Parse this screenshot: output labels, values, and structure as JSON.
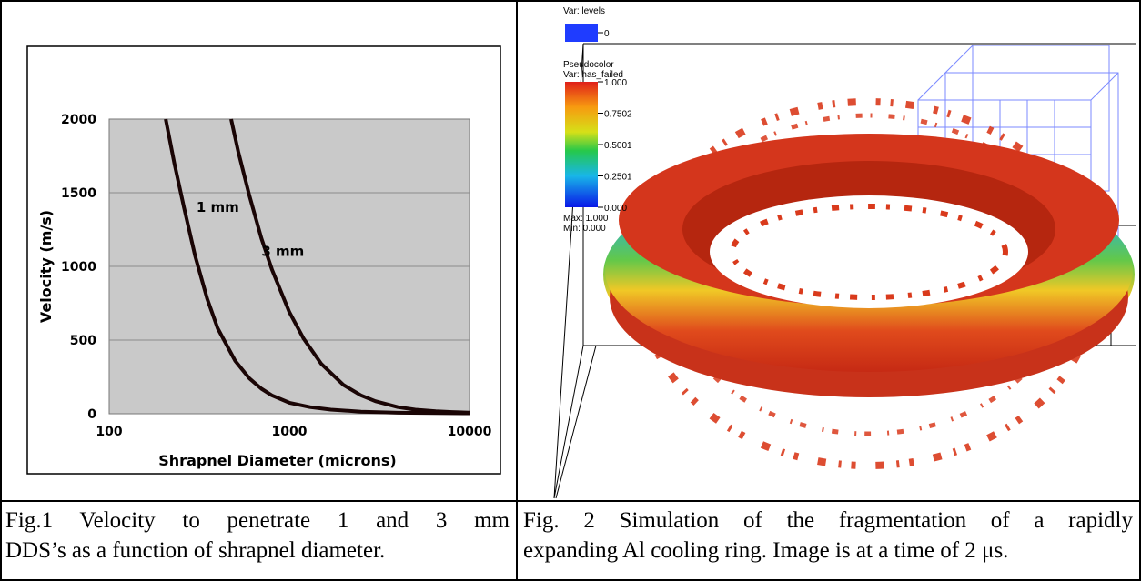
{
  "chart_data": {
    "type": "line",
    "xlabel": "Shrapnel Diameter (microns)",
    "ylabel": "Velocity (m/s)",
    "x_scale": "log",
    "xlim": [
      100,
      10000
    ],
    "ylim": [
      0,
      2000
    ],
    "x_ticks": [
      "100",
      "1000",
      "10000"
    ],
    "y_ticks": [
      "0",
      "500",
      "1000",
      "1500",
      "2000"
    ],
    "grid": "horizontal",
    "series": [
      {
        "name": "1 mm",
        "color": "#1a0505",
        "x": [
          206,
          230,
          260,
          300,
          350,
          400,
          500,
          600,
          700,
          800,
          1000,
          1300,
          1700,
          2500,
          4000,
          10000
        ],
        "y": [
          2000,
          1700,
          1400,
          1070,
          780,
          580,
          360,
          240,
          170,
          125,
          75,
          45,
          28,
          14,
          7,
          3
        ]
      },
      {
        "name": "3 mm",
        "color": "#1a0505",
        "x": [
          475,
          520,
          600,
          700,
          800,
          1000,
          1200,
          1500,
          2000,
          2500,
          3000,
          4000,
          5000,
          6500,
          8000,
          10000
        ],
        "y": [
          2000,
          1780,
          1480,
          1190,
          980,
          690,
          510,
          340,
          195,
          125,
          85,
          45,
          28,
          17,
          12,
          8
        ]
      }
    ]
  },
  "viz": {
    "levels_label": "Var: levels",
    "levels_value": "0",
    "pseudocolor_label": "Pseudocolor",
    "var_label": "Var: has_failed",
    "legend_ticks": [
      "1.000",
      "0.7502",
      "0.5001",
      "0.2501",
      "0.000"
    ],
    "max_label": "Max: 1.000",
    "min_label": "Min: 0.000",
    "levels_color": "#1f3cff",
    "fragment_color": "#d93a1c"
  },
  "captions": {
    "fig1_line1": "Fig.1 Velocity to penetrate 1 and 3 mm",
    "fig1_line2": "DDS’s as a function of shrapnel diameter.",
    "fig2_line1": "Fig. 2 Simulation of the fragmentation of a rapidly",
    "fig2_line2": "expanding Al cooling ring. Image is at a time of 2 μs."
  }
}
